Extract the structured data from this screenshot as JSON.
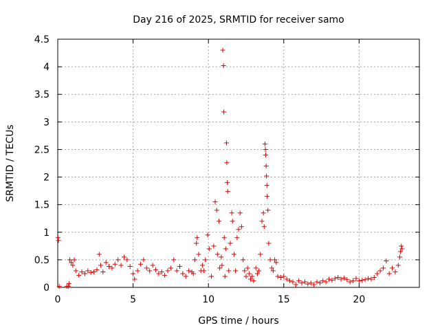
{
  "chart_data": {
    "type": "scatter",
    "title": "Day 216 of 2025, SRMTID for receiver samo",
    "xlabel": "GPS time / hours",
    "ylabel": "SRMTID / TECUs",
    "xlim": [
      0,
      24
    ],
    "ylim": [
      0,
      4.5
    ],
    "grid": true,
    "marker": "+",
    "colors": {
      "series": "#e00000",
      "axis": "#000000",
      "grid": "#a0a0a0"
    },
    "x_ticks": [
      0,
      5,
      10,
      15,
      20
    ],
    "x_tick_labels": [
      "0",
      "5",
      "10",
      "15",
      "20"
    ],
    "y_ticks": [
      0,
      0.5,
      1,
      1.5,
      2,
      2.5,
      3,
      3.5,
      4,
      4.5
    ],
    "y_tick_labels": [
      "0",
      "0.5",
      "1",
      "1.5",
      "2",
      "2.5",
      "3",
      "3.5",
      "4",
      "4.5"
    ],
    "series": [
      {
        "name": "samo",
        "points": [
          [
            0.02,
            0.9
          ],
          [
            0.05,
            0.85
          ],
          [
            0.1,
            0.02
          ],
          [
            0.6,
            0.02
          ],
          [
            0.7,
            0.02
          ],
          [
            0.75,
            0.07
          ],
          [
            0.8,
            0.5
          ],
          [
            0.9,
            0.45
          ],
          [
            1.0,
            0.4
          ],
          [
            1.1,
            0.5
          ],
          [
            1.2,
            0.3
          ],
          [
            1.4,
            0.22
          ],
          [
            1.6,
            0.28
          ],
          [
            1.8,
            0.25
          ],
          [
            2.0,
            0.3
          ],
          [
            2.2,
            0.27
          ],
          [
            2.4,
            0.28
          ],
          [
            2.6,
            0.32
          ],
          [
            2.75,
            0.6
          ],
          [
            2.85,
            0.4
          ],
          [
            3.0,
            0.28
          ],
          [
            3.2,
            0.45
          ],
          [
            3.4,
            0.38
          ],
          [
            3.6,
            0.35
          ],
          [
            3.8,
            0.42
          ],
          [
            4.0,
            0.5
          ],
          [
            4.2,
            0.4
          ],
          [
            4.4,
            0.55
          ],
          [
            4.6,
            0.5
          ],
          [
            4.8,
            0.38
          ],
          [
            5.0,
            0.25
          ],
          [
            5.1,
            0.15
          ],
          [
            5.3,
            0.3
          ],
          [
            5.5,
            0.42
          ],
          [
            5.7,
            0.5
          ],
          [
            5.9,
            0.35
          ],
          [
            6.1,
            0.3
          ],
          [
            6.3,
            0.4
          ],
          [
            6.5,
            0.32
          ],
          [
            6.7,
            0.25
          ],
          [
            6.9,
            0.28
          ],
          [
            7.1,
            0.22
          ],
          [
            7.3,
            0.3
          ],
          [
            7.5,
            0.35
          ],
          [
            7.7,
            0.5
          ],
          [
            7.9,
            0.3
          ],
          [
            8.1,
            0.38
          ],
          [
            8.3,
            0.25
          ],
          [
            8.5,
            0.2
          ],
          [
            8.7,
            0.3
          ],
          [
            8.9,
            0.28
          ],
          [
            9.0,
            0.25
          ],
          [
            9.1,
            0.5
          ],
          [
            9.2,
            0.8
          ],
          [
            9.25,
            0.9
          ],
          [
            9.35,
            0.6
          ],
          [
            9.5,
            0.3
          ],
          [
            9.6,
            0.4
          ],
          [
            9.7,
            0.3
          ],
          [
            9.8,
            0.5
          ],
          [
            9.95,
            0.95
          ],
          [
            10.05,
            0.7
          ],
          [
            10.2,
            0.2
          ],
          [
            10.35,
            0.75
          ],
          [
            10.45,
            1.55
          ],
          [
            10.55,
            1.4
          ],
          [
            10.6,
            0.6
          ],
          [
            10.7,
            1.2
          ],
          [
            10.75,
            0.35
          ],
          [
            10.85,
            0.55
          ],
          [
            10.9,
            0.4
          ],
          [
            10.95,
            4.3
          ],
          [
            11.0,
            4.02
          ],
          [
            11.02,
            3.18
          ],
          [
            11.05,
            0.9
          ],
          [
            11.1,
            0.2
          ],
          [
            11.15,
            0.7
          ],
          [
            11.2,
            2.62
          ],
          [
            11.22,
            2.26
          ],
          [
            11.25,
            1.9
          ],
          [
            11.28,
            1.74
          ],
          [
            11.35,
            0.3
          ],
          [
            11.45,
            0.8
          ],
          [
            11.55,
            1.35
          ],
          [
            11.6,
            1.2
          ],
          [
            11.7,
            0.6
          ],
          [
            11.8,
            0.3
          ],
          [
            11.9,
            0.9
          ],
          [
            12.0,
            1.05
          ],
          [
            12.1,
            1.35
          ],
          [
            12.2,
            1.1
          ],
          [
            12.3,
            0.5
          ],
          [
            12.4,
            0.3
          ],
          [
            12.5,
            0.2
          ],
          [
            12.6,
            0.35
          ],
          [
            12.7,
            0.25
          ],
          [
            12.8,
            0.15
          ],
          [
            12.9,
            0.2
          ],
          [
            13.0,
            0.12
          ],
          [
            13.15,
            0.35
          ],
          [
            13.25,
            0.25
          ],
          [
            13.35,
            0.3
          ],
          [
            13.45,
            0.6
          ],
          [
            13.55,
            1.2
          ],
          [
            13.65,
            1.35
          ],
          [
            13.7,
            1.1
          ],
          [
            13.75,
            2.6
          ],
          [
            13.78,
            2.5
          ],
          [
            13.8,
            2.4
          ],
          [
            13.83,
            2.2
          ],
          [
            13.85,
            2.02
          ],
          [
            13.88,
            1.85
          ],
          [
            13.9,
            1.65
          ],
          [
            13.95,
            1.4
          ],
          [
            14.0,
            0.8
          ],
          [
            14.1,
            0.5
          ],
          [
            14.2,
            0.35
          ],
          [
            14.3,
            0.3
          ],
          [
            14.4,
            0.5
          ],
          [
            14.5,
            0.45
          ],
          [
            14.6,
            0.2
          ],
          [
            14.8,
            0.18
          ],
          [
            15.0,
            0.2
          ],
          [
            15.2,
            0.15
          ],
          [
            15.4,
            0.12
          ],
          [
            15.6,
            0.1
          ],
          [
            15.8,
            0.05
          ],
          [
            16.0,
            0.12
          ],
          [
            16.2,
            0.08
          ],
          [
            16.4,
            0.1
          ],
          [
            16.6,
            0.06
          ],
          [
            16.8,
            0.08
          ],
          [
            17.0,
            0.05
          ],
          [
            17.2,
            0.1
          ],
          [
            17.4,
            0.08
          ],
          [
            17.6,
            0.12
          ],
          [
            17.8,
            0.1
          ],
          [
            18.0,
            0.15
          ],
          [
            18.2,
            0.13
          ],
          [
            18.4,
            0.16
          ],
          [
            18.6,
            0.18
          ],
          [
            18.8,
            0.15
          ],
          [
            19.0,
            0.17
          ],
          [
            19.2,
            0.14
          ],
          [
            19.4,
            0.1
          ],
          [
            19.6,
            0.12
          ],
          [
            19.8,
            0.16
          ],
          [
            20.0,
            0.12
          ],
          [
            20.2,
            0.13
          ],
          [
            20.4,
            0.14
          ],
          [
            20.6,
            0.16
          ],
          [
            20.8,
            0.15
          ],
          [
            21.0,
            0.18
          ],
          [
            21.2,
            0.25
          ],
          [
            21.4,
            0.3
          ],
          [
            21.6,
            0.35
          ],
          [
            21.8,
            0.48
          ],
          [
            22.0,
            0.25
          ],
          [
            22.2,
            0.35
          ],
          [
            22.4,
            0.28
          ],
          [
            22.6,
            0.4
          ],
          [
            22.7,
            0.55
          ],
          [
            22.75,
            0.65
          ],
          [
            22.8,
            0.75
          ],
          [
            22.85,
            0.7
          ]
        ]
      }
    ]
  }
}
